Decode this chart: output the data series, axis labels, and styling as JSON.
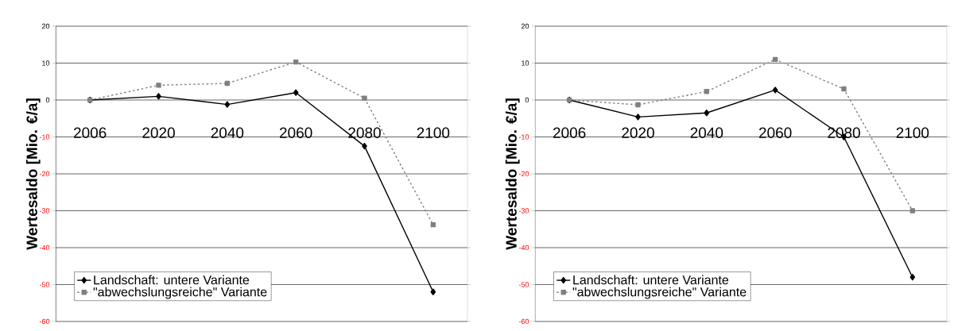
{
  "chart_data": [
    {
      "type": "line",
      "ylabel": "Wertesaldo [Mio. €/a]",
      "categories": [
        "2006",
        "2020",
        "2040",
        "2060",
        "2080",
        "2100"
      ],
      "ylim": [
        -60,
        20
      ],
      "yticks": [
        -60,
        -50,
        -40,
        -30,
        -20,
        -10,
        0,
        10,
        20
      ],
      "grid": "y",
      "legend": "bottom left",
      "series": [
        {
          "name": "Landschaft: untere Variante",
          "color": "#000000",
          "marker": "diamond",
          "line_style": "solid",
          "values": [
            0,
            1,
            -1.2,
            2,
            -12.5,
            -52
          ]
        },
        {
          "name": "\"abwechslungsreiche\" Variante",
          "color": "#808080",
          "marker": "square",
          "line_style": "dotted",
          "values": [
            0,
            4,
            4.5,
            10.3,
            0.5,
            -33.8
          ]
        }
      ]
    },
    {
      "type": "line",
      "ylabel": "Wertesaldo [Mio. €/a]",
      "categories": [
        "2006",
        "2020",
        "2040",
        "2060",
        "2080",
        "2100"
      ],
      "ylim": [
        -60,
        20
      ],
      "yticks": [
        -60,
        -50,
        -40,
        -30,
        -20,
        -10,
        0,
        10,
        20
      ],
      "grid": "y",
      "legend": "bottom left",
      "series": [
        {
          "name": "Landschaft: untere Variante",
          "color": "#000000",
          "marker": "diamond",
          "line_style": "solid",
          "values": [
            0,
            -4.6,
            -3.5,
            2.7,
            -10,
            -48
          ]
        },
        {
          "name": "\"abwechslungsreiche\" Variante",
          "color": "#808080",
          "marker": "square",
          "line_style": "dotted",
          "values": [
            0,
            -1.3,
            2.3,
            11,
            3,
            -30
          ]
        }
      ]
    }
  ]
}
